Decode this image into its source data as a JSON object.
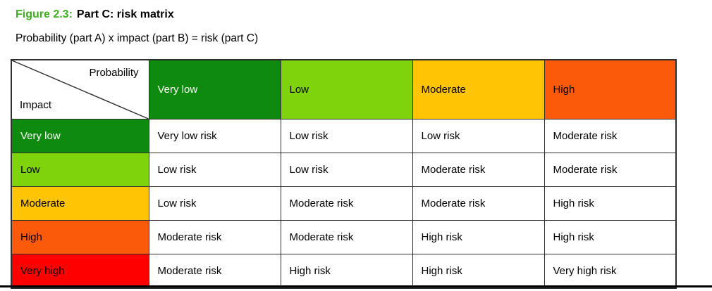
{
  "figure": {
    "label": "Figure 2.3:",
    "title": "Part C: risk matrix",
    "subtitle": "Probability (part A) x impact (part B) = risk (part C)"
  },
  "matrix": {
    "corner": {
      "top_label": "Probability",
      "bottom_label": "Impact"
    },
    "columns": [
      {
        "label": "Very low",
        "color": "#0e8a0e",
        "text_color": "#ffffff"
      },
      {
        "label": "Low",
        "color": "#7ed30b",
        "text_color": "#000000"
      },
      {
        "label": "Moderate",
        "color": "#ffc403",
        "text_color": "#000000"
      },
      {
        "label": "High",
        "color": "#fa5a0a",
        "text_color": "#000000"
      }
    ],
    "rows": [
      {
        "label": "Very low",
        "color": "#0e8a0e",
        "text_color": "#ffffff",
        "cells": [
          "Very low risk",
          "Low risk",
          "Low risk",
          "Moderate risk"
        ]
      },
      {
        "label": "Low",
        "color": "#7ed30b",
        "text_color": "#000000",
        "cells": [
          "Low risk",
          "Low risk",
          "Moderate risk",
          "Moderate risk"
        ]
      },
      {
        "label": "Moderate",
        "color": "#ffc403",
        "text_color": "#000000",
        "cells": [
          "Low risk",
          "Moderate risk",
          "Moderate risk",
          "High risk"
        ]
      },
      {
        "label": "High",
        "color": "#fa5a0a",
        "text_color": "#000000",
        "cells": [
          "Moderate risk",
          "Moderate risk",
          "High risk",
          "High risk"
        ]
      },
      {
        "label": "Very high",
        "color": "#ff0000",
        "text_color": "#000000",
        "cells": [
          "Moderate risk",
          "High risk",
          "High risk",
          "Very high risk"
        ]
      }
    ]
  },
  "colors": {
    "figure_label_green": "#3cb01e",
    "border": "#2f2f2f",
    "bottom_rule": "#000000"
  }
}
